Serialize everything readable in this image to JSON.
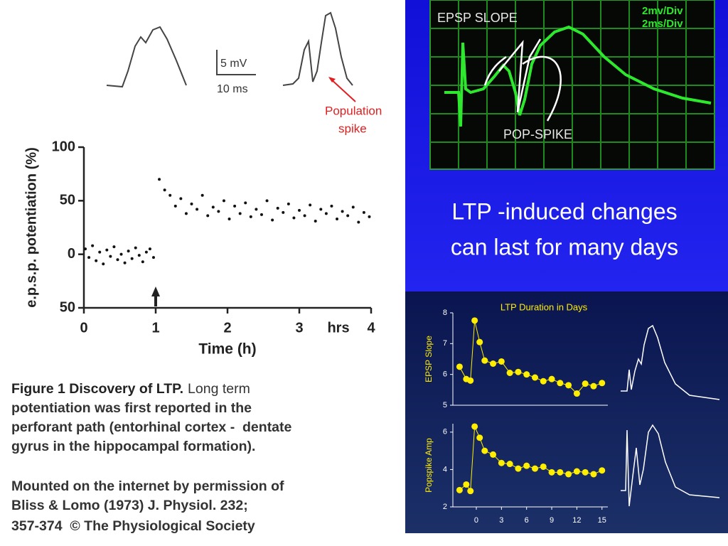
{
  "slide": {
    "title_lines": [
      "LTP -induced changes",
      "can last for many days"
    ]
  },
  "traces": {
    "scale_mv": "5 mV",
    "scale_ms": "10 ms",
    "annotation_lines": [
      "Population",
      "spike"
    ]
  },
  "oscilloscope": {
    "labels": [
      "EPSP SLOPE",
      "POP-SPIKE"
    ],
    "scale_lines": [
      "2mv/Div",
      "2ms/Div"
    ]
  },
  "caption": {
    "heading": "Figure 1 Discovery of LTP.",
    "lines": [
      "Long term",
      "potentiation was first reported in the",
      "perforant path (entorhinal cortex -  dentate",
      "gyrus in the hippocampal formation)."
    ],
    "credit_lines": [
      "Mounted on the internet by permission of",
      "Bliss & Lomo (1973) J. Physiol. 232;",
      "357-374  © The Physiological Society"
    ]
  },
  "chart_data": [
    {
      "type": "scatter",
      "x_label": "Time (h)",
      "y_label": "e.p.s.p. potentiation (%)",
      "x_unit": "hrs",
      "x": [
        0.02,
        0.07,
        0.12,
        0.17,
        0.22,
        0.27,
        0.32,
        0.37,
        0.42,
        0.47,
        0.52,
        0.57,
        0.62,
        0.67,
        0.72,
        0.77,
        0.82,
        0.87,
        0.92,
        0.97,
        1.05,
        1.125,
        1.2,
        1.275,
        1.35,
        1.425,
        1.5,
        1.575,
        1.65,
        1.725,
        1.8,
        1.875,
        1.95,
        2.025,
        2.1,
        2.175,
        2.25,
        2.325,
        2.4,
        2.475,
        2.55,
        2.625,
        2.7,
        2.775,
        2.85,
        2.925,
        3.0,
        3.075,
        3.15,
        3.225,
        3.3,
        3.375,
        3.45,
        3.525,
        3.6,
        3.675,
        3.75,
        3.825,
        3.9,
        3.975
      ],
      "values": [
        5,
        -3,
        8,
        -6,
        2,
        -9,
        4,
        -2,
        7,
        -5,
        0,
        -8,
        3,
        -4,
        6,
        -1,
        -7,
        2,
        5,
        -3,
        70,
        60,
        55,
        45,
        52,
        38,
        47,
        42,
        55,
        36,
        44,
        40,
        50,
        33,
        45,
        38,
        48,
        35,
        42,
        37,
        50,
        32,
        43,
        39,
        47,
        34,
        41,
        36,
        46,
        31,
        42,
        38,
        45,
        33,
        40,
        36,
        44,
        30,
        39,
        35
      ],
      "color": "#111111",
      "stimulus_x": 1,
      "xlim": [
        0,
        4
      ],
      "ylim": [
        -50,
        100
      ],
      "xticks": [
        0,
        1,
        2,
        3,
        4
      ],
      "yticks": [
        {
          "value": -50,
          "label": "50"
        },
        0,
        50,
        100
      ]
    },
    {
      "type": "line",
      "title": "LTP Duration in Days",
      "y_label": "EPSP Slope",
      "color": "#ffee00",
      "x": [
        -2,
        -1.2,
        -0.7,
        -0.2,
        0.4,
        1,
        2,
        3,
        4,
        5,
        6,
        7,
        8,
        9,
        10,
        11,
        12,
        13,
        14,
        15
      ],
      "values": [
        6.25,
        5.85,
        5.8,
        7.75,
        7.05,
        6.45,
        6.35,
        6.42,
        6.05,
        6.08,
        6.0,
        5.9,
        5.78,
        5.85,
        5.72,
        5.65,
        5.38,
        5.7,
        5.62,
        5.72
      ],
      "xlim": [
        -2.8,
        15.7
      ],
      "ylim": [
        5,
        8
      ],
      "yticks": [
        5,
        6,
        7,
        8
      ]
    },
    {
      "type": "line",
      "y_label": "Popspike Amp",
      "color": "#ffee00",
      "x": [
        -2,
        -1.2,
        -0.7,
        -0.2,
        0.4,
        1,
        2,
        3,
        4,
        5,
        6,
        7,
        8,
        9,
        10,
        11,
        12,
        13,
        14,
        15
      ],
      "values": [
        2.9,
        3.2,
        2.85,
        6.3,
        5.7,
        5.0,
        4.8,
        4.35,
        4.3,
        4.05,
        4.2,
        4.05,
        4.15,
        3.85,
        3.85,
        3.75,
        3.9,
        3.85,
        3.75,
        3.95
      ],
      "xlim": [
        -2.8,
        15.7
      ],
      "ylim": [
        2,
        6.45
      ],
      "xticks": [
        0,
        3,
        6,
        9,
        12,
        15
      ],
      "yticks": [
        2,
        4,
        6
      ]
    }
  ]
}
